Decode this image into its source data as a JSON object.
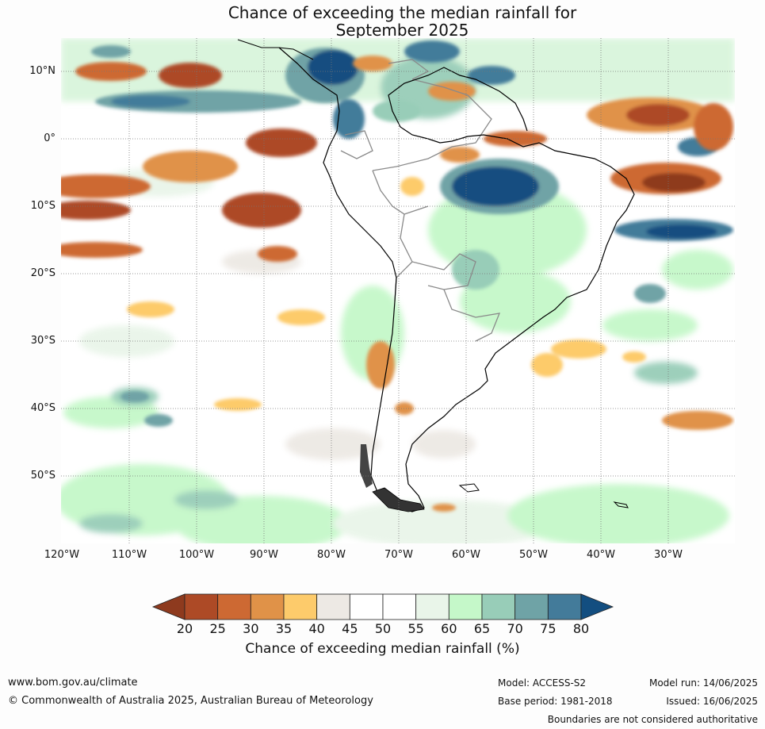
{
  "title": {
    "line1": "Chance of exceeding the median rainfall for",
    "line2": "September 2025"
  },
  "map": {
    "lat_labels": [
      "10°N",
      "0°",
      "10°S",
      "20°S",
      "30°S",
      "40°S",
      "50°S"
    ],
    "lon_labels": [
      "120°W",
      "110°W",
      "100°W",
      "90°W",
      "80°W",
      "70°W",
      "60°W",
      "50°W",
      "40°W",
      "30°W"
    ],
    "grid": true,
    "notable_regions": [
      {
        "name": "wet anomaly, northern Brazil / Amazon",
        "band": "75-80"
      },
      {
        "name": "wet anomaly, Colombia / Panama",
        "band": "75-80"
      },
      {
        "name": "dry anomaly, equatorial Atlantic",
        "band": "20-25"
      },
      {
        "name": "dry anomaly, eastern equatorial Pacific",
        "band": "20-25"
      }
    ]
  },
  "colorbar": {
    "ticks": [
      "20",
      "25",
      "30",
      "35",
      "40",
      "45",
      "50",
      "55",
      "60",
      "65",
      "70",
      "75",
      "80"
    ],
    "colors": {
      "below_20": "#8e3a1e",
      "20-25": "#ad4a26",
      "25-30": "#cd6933",
      "30-35": "#e09248",
      "35-40": "#fdcb6b",
      "40-45": "#ede9e4",
      "45-50": "#ffffff",
      "50-55": "#ffffff",
      "55-60": "#e9f5e9",
      "60-65": "#c5f8c9",
      "65-70": "#98cdb8",
      "70-75": "#6fa3a6",
      "75-80": "#437b9a",
      "above_80": "#134e80"
    },
    "label": "Chance of exceeding median rainfall (%)"
  },
  "footer": {
    "website": "www.bom.gov.au/climate",
    "copyright": "© Commonwealth of Australia 2025, Australian Bureau of Meteorology",
    "model": "Model: ACCESS-S2",
    "base_period": "Base period: 1981-2018",
    "model_run": "Model run: 14/06/2025",
    "issued": "Issued: 16/06/2025",
    "disclaimer": "Boundaries are not considered authoritative"
  }
}
